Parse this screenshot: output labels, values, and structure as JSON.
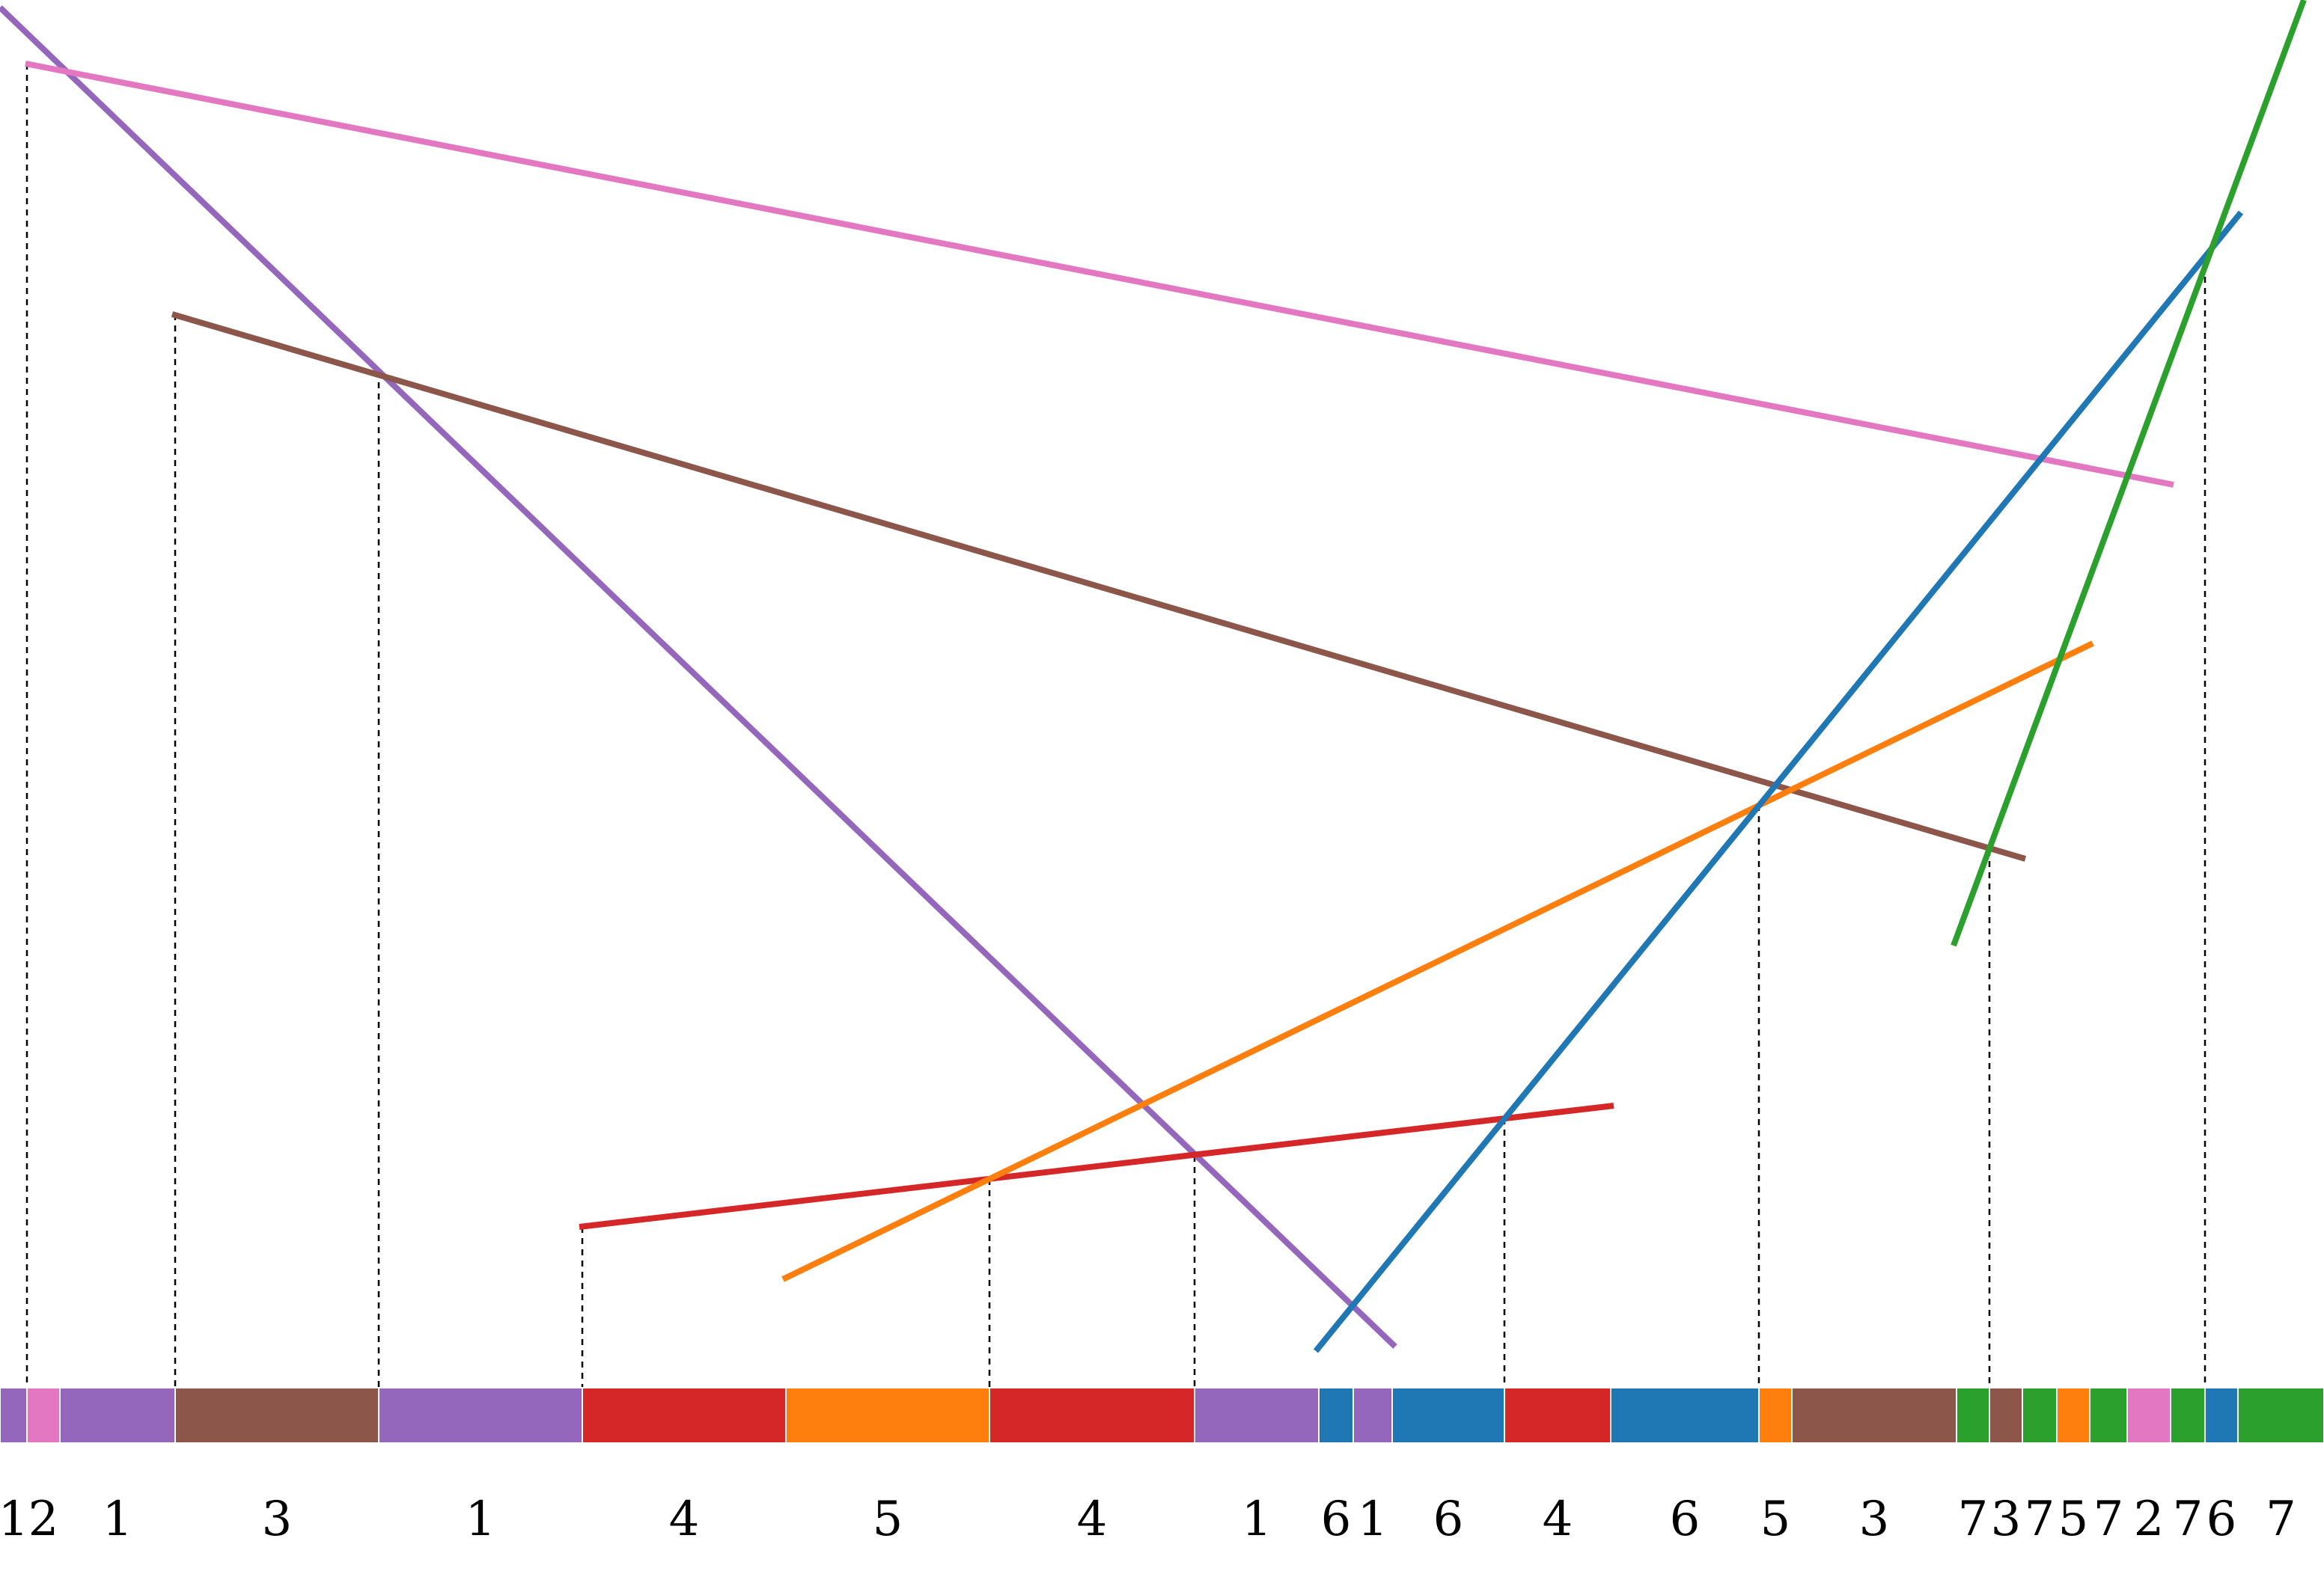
{
  "colors": {
    "1": "#9467bd",
    "2": "#e377c2",
    "3": "#8c564b",
    "4": "#d62728",
    "5": "#ff7f0e",
    "6": "#1f77b4",
    "7": "#2ca02c"
  },
  "line_ids": [
    "1",
    "2",
    "3",
    "4",
    "5",
    "6",
    "7"
  ],
  "envelope_segments": [
    {
      "label": "1",
      "line": "1"
    },
    {
      "label": "2",
      "line": "2"
    },
    {
      "label": "1",
      "line": "1"
    },
    {
      "label": "3",
      "line": "3"
    },
    {
      "label": "1",
      "line": "1"
    },
    {
      "label": "4",
      "line": "4"
    },
    {
      "label": "5",
      "line": "5"
    },
    {
      "label": "4",
      "line": "4"
    },
    {
      "label": "1",
      "line": "1"
    },
    {
      "label": "6",
      "line": "6"
    },
    {
      "label": "1",
      "line": "1"
    },
    {
      "label": "6",
      "line": "6"
    },
    {
      "label": "4",
      "line": "4"
    },
    {
      "label": "6",
      "line": "6"
    },
    {
      "label": "5",
      "line": "5"
    },
    {
      "label": "3",
      "line": "3"
    },
    {
      "label": "7",
      "line": "7"
    },
    {
      "label": "3",
      "line": "3"
    },
    {
      "label": "7",
      "line": "7"
    },
    {
      "label": "5",
      "line": "5"
    },
    {
      "label": "7",
      "line": "7"
    },
    {
      "label": "2",
      "line": "2"
    },
    {
      "label": "7",
      "line": "7"
    },
    {
      "label": "6",
      "line": "6"
    },
    {
      "label": "7",
      "line": "7"
    }
  ]
}
